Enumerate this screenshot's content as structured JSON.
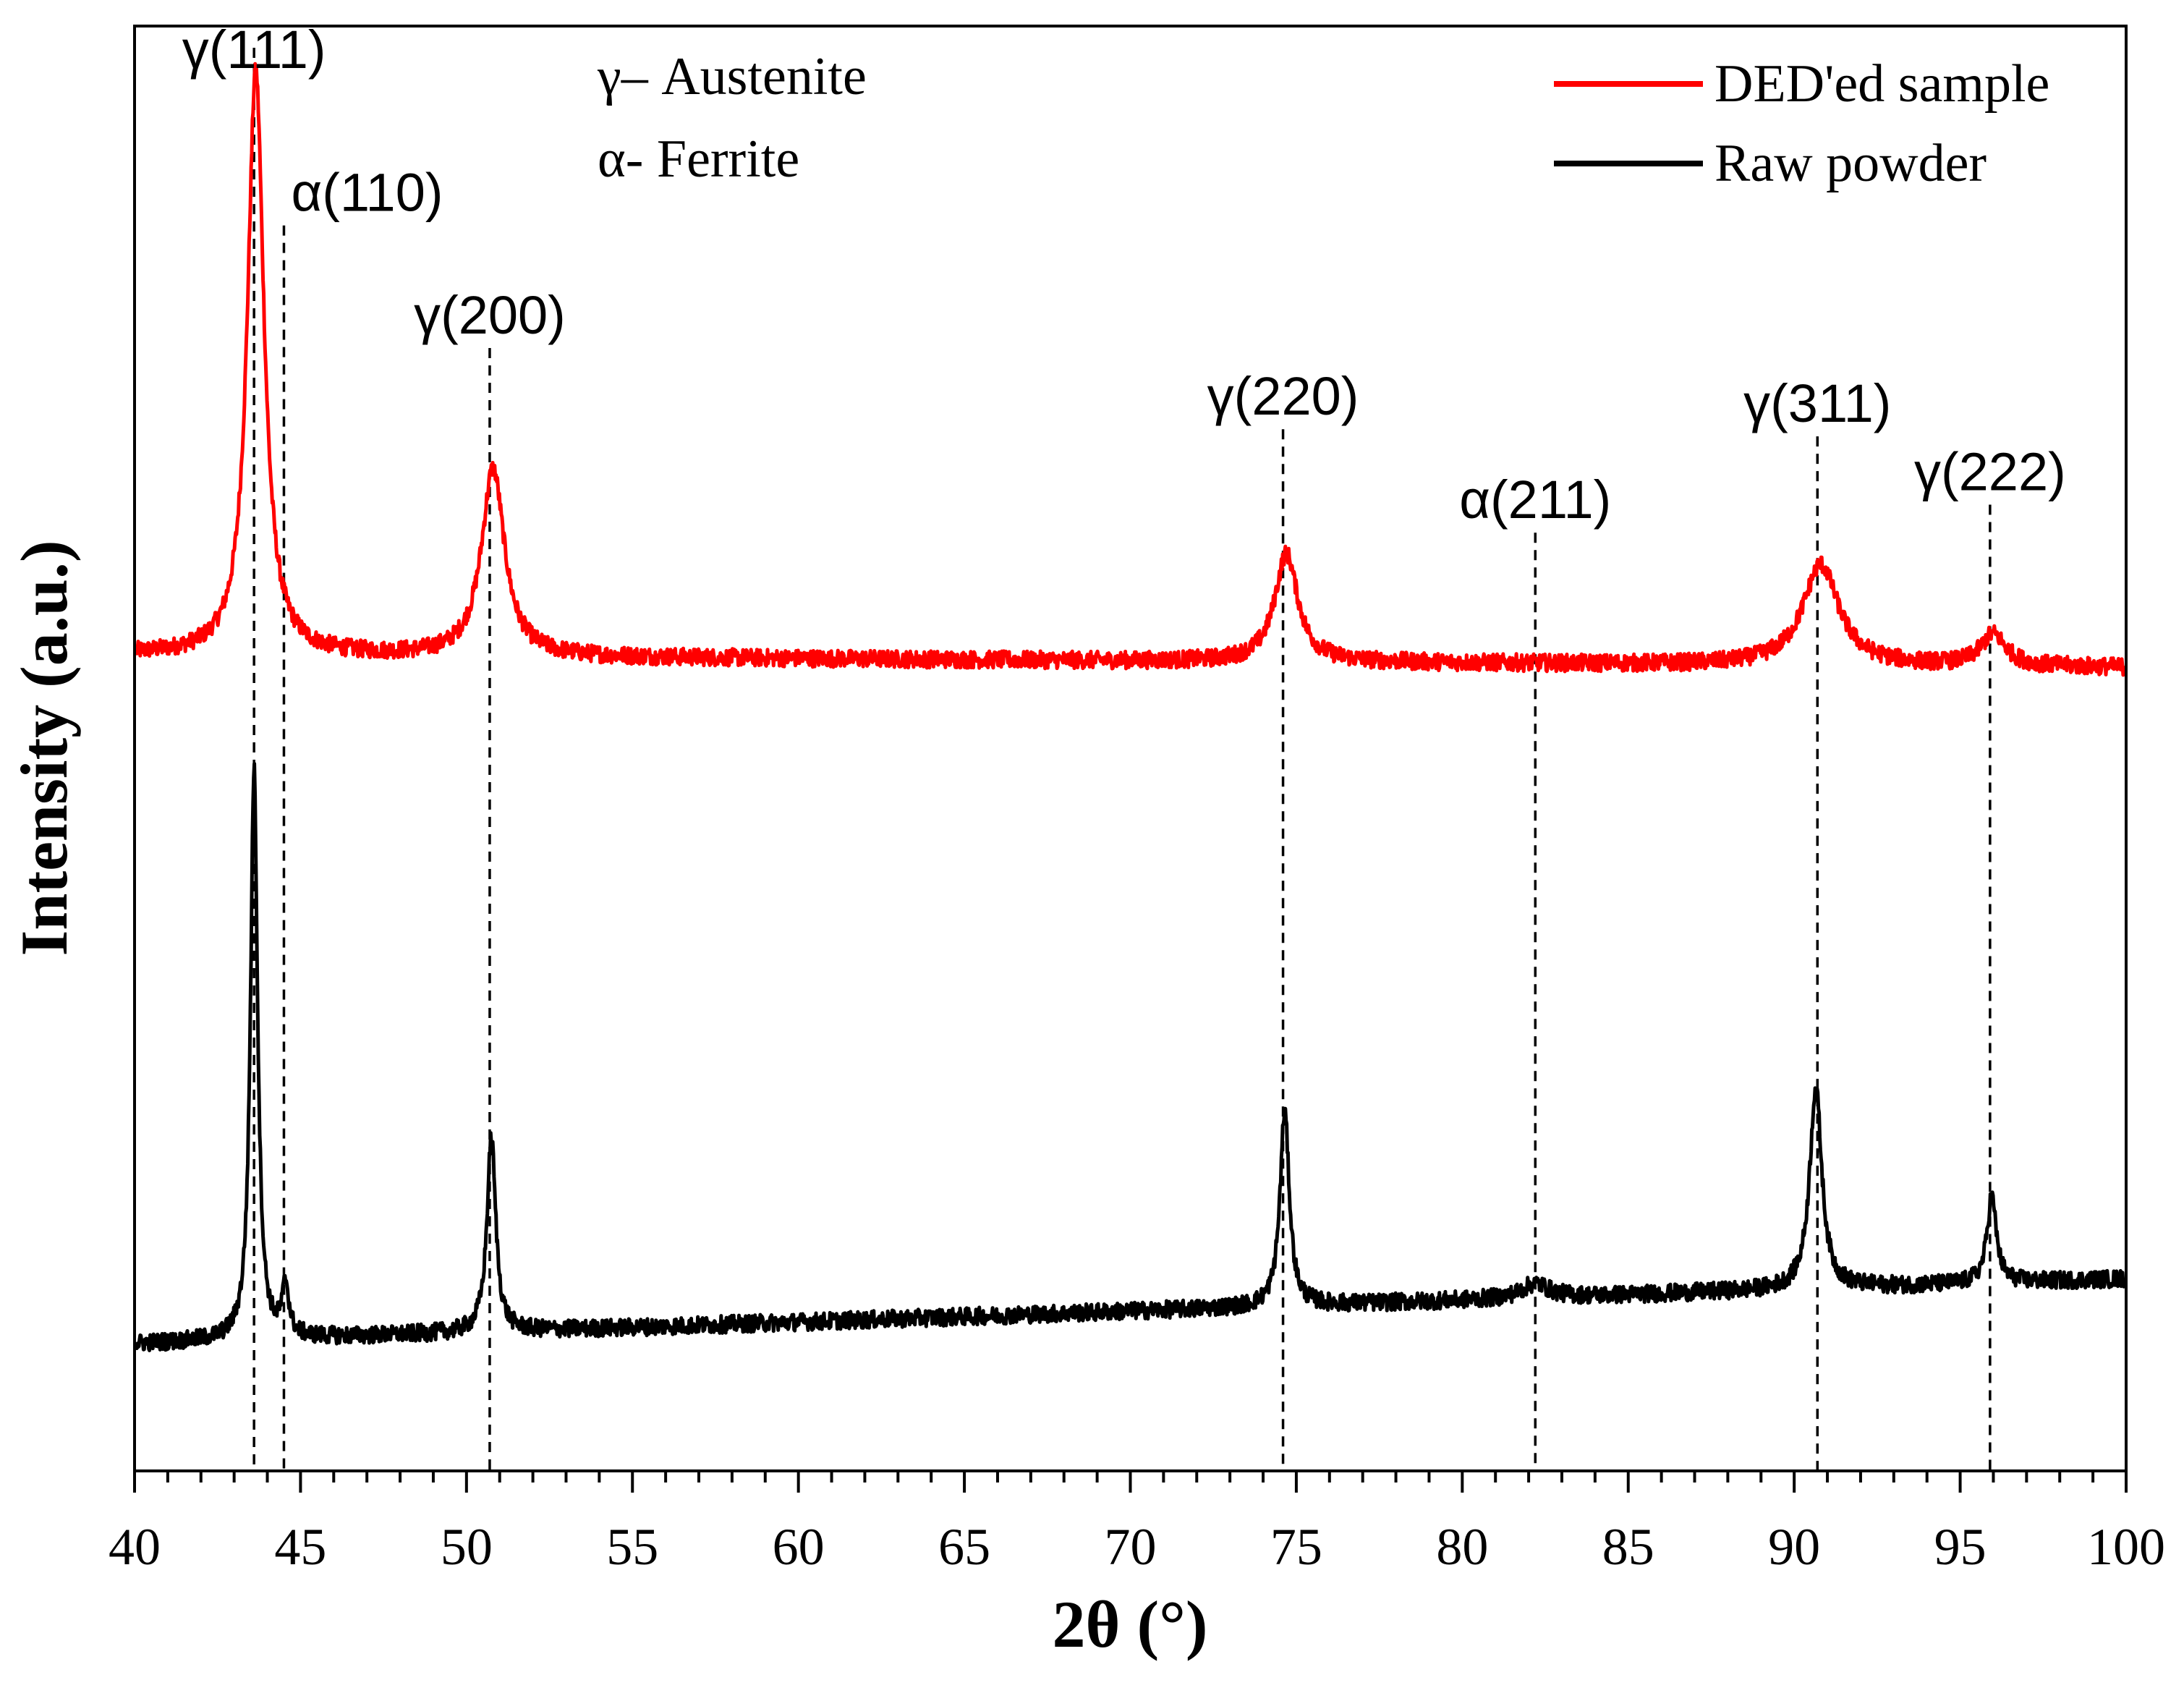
{
  "chart_data": {
    "type": "line",
    "title": "",
    "xlabel": "2θ (°)",
    "ylabel": "Intensity (a.u.)",
    "xlim": [
      40,
      100
    ],
    "ylim": [
      0,
      1
    ],
    "xticks": [
      40,
      45,
      50,
      55,
      60,
      65,
      70,
      75,
      80,
      85,
      90,
      95,
      100
    ],
    "y_tick_labels_shown": false,
    "grid": false,
    "legend": {
      "placement": "top-right"
    },
    "phase_legend": [
      "γ– Austenite",
      "α- Ferrite"
    ],
    "reference_lines": [
      {
        "x": 43.6,
        "label": "γ(111)"
      },
      {
        "x": 44.5,
        "label": "α(110)"
      },
      {
        "x": 50.7,
        "label": "γ(200)"
      },
      {
        "x": 74.6,
        "label": "γ(220)"
      },
      {
        "x": 82.2,
        "label": "α(211)"
      },
      {
        "x": 90.7,
        "label": "γ(311)"
      },
      {
        "x": 95.9,
        "label": "γ(222)"
      }
    ],
    "series": [
      {
        "name": "DED'ed sample",
        "color": "#ff0000",
        "baseline": 0.565,
        "baseline_slope": -0.009,
        "noise": 0.006,
        "peaks": [
          {
            "x": 43.65,
            "height": 0.405,
            "width": 0.3
          },
          {
            "x": 50.8,
            "height": 0.13,
            "width": 0.42
          },
          {
            "x": 74.7,
            "height": 0.075,
            "width": 0.42
          },
          {
            "x": 90.8,
            "height": 0.07,
            "width": 0.65
          },
          {
            "x": 96.0,
            "height": 0.022,
            "width": 0.45
          }
        ]
      },
      {
        "name": "Raw powder",
        "color": "#000000",
        "baseline": 0.088,
        "baseline_slope": 0.045,
        "noise": 0.006,
        "peaks": [
          {
            "x": 43.6,
            "height": 0.395,
            "width": 0.13
          },
          {
            "x": 44.55,
            "height": 0.035,
            "width": 0.12
          },
          {
            "x": 50.75,
            "height": 0.135,
            "width": 0.16
          },
          {
            "x": 74.65,
            "height": 0.135,
            "width": 0.17
          },
          {
            "x": 82.2,
            "height": 0.01,
            "width": 0.5
          },
          {
            "x": 90.65,
            "height": 0.14,
            "width": 0.22
          },
          {
            "x": 95.95,
            "height": 0.06,
            "width": 0.17
          }
        ]
      }
    ]
  }
}
